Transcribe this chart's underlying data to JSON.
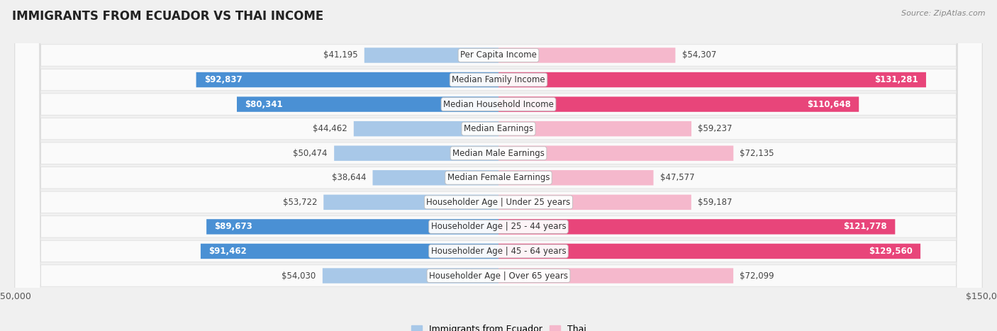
{
  "title": "IMMIGRANTS FROM ECUADOR VS THAI INCOME",
  "source": "Source: ZipAtlas.com",
  "categories": [
    "Per Capita Income",
    "Median Family Income",
    "Median Household Income",
    "Median Earnings",
    "Median Male Earnings",
    "Median Female Earnings",
    "Householder Age | Under 25 years",
    "Householder Age | 25 - 44 years",
    "Householder Age | 45 - 64 years",
    "Householder Age | Over 65 years"
  ],
  "ecuador_values": [
    41195,
    92837,
    80341,
    44462,
    50474,
    38644,
    53722,
    89673,
    91462,
    54030
  ],
  "thai_values": [
    54307,
    131281,
    110648,
    59237,
    72135,
    47577,
    59187,
    121778,
    129560,
    72099
  ],
  "ecuador_labels": [
    "$41,195",
    "$92,837",
    "$80,341",
    "$44,462",
    "$50,474",
    "$38,644",
    "$53,722",
    "$89,673",
    "$91,462",
    "$54,030"
  ],
  "thai_labels": [
    "$54,307",
    "$131,281",
    "$110,648",
    "$59,237",
    "$72,135",
    "$47,577",
    "$59,187",
    "$121,778",
    "$129,560",
    "$72,099"
  ],
  "ecuador_color_light": "#a8c8e8",
  "ecuador_color_dark": "#4a90d4",
  "thai_color_light": "#f5b8cc",
  "thai_color_dark": "#e8457a",
  "ecuador_dark_threshold": 70000,
  "thai_dark_threshold": 90000,
  "max_value": 150000,
  "bar_height": 0.62,
  "background_color": "#f0f0f0",
  "row_bg_color": "#fafafa",
  "label_fontsize": 8.5,
  "title_fontsize": 12,
  "source_fontsize": 8,
  "category_fontsize": 8.5
}
